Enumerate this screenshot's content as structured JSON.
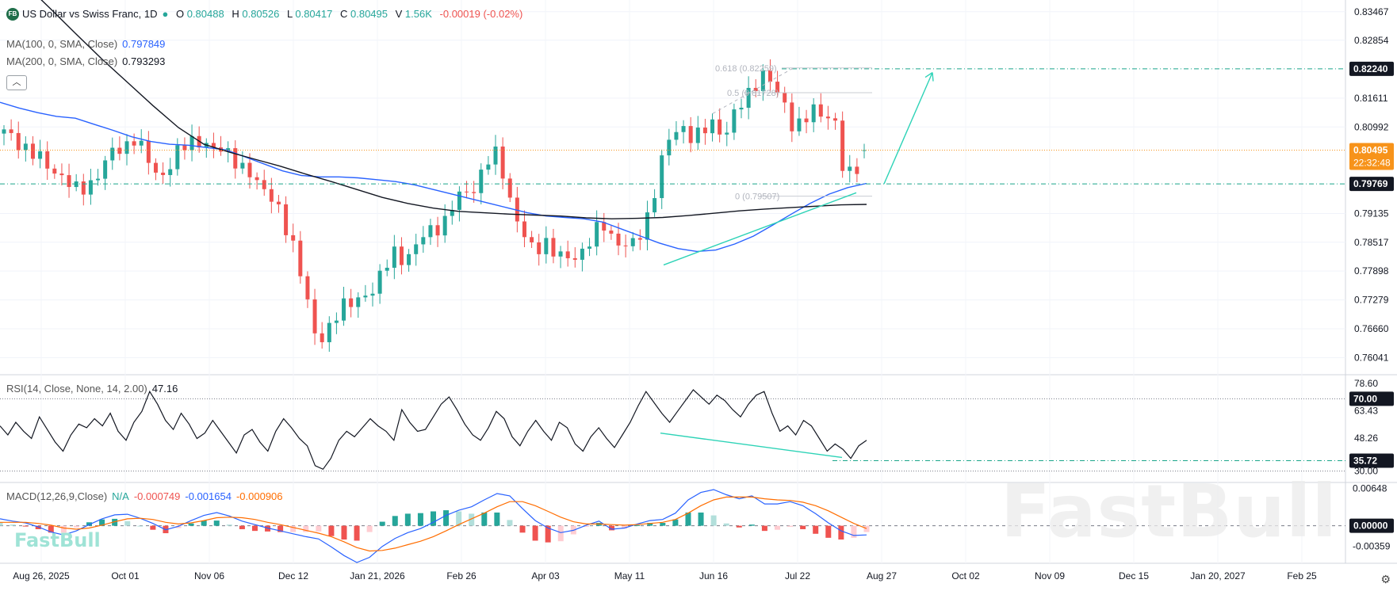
{
  "header": {
    "badge": "FB",
    "symbol_title": "US Dollar vs Swiss Franc, 1D",
    "o_label": "O",
    "o_value": "0.80488",
    "h_label": "H",
    "h_value": "0.80526",
    "l_label": "L",
    "l_value": "0.80417",
    "c_label": "C",
    "c_value": "0.80495",
    "v_label": "V",
    "v_value": "1.56K",
    "change": "-0.00019 (-0.02%)"
  },
  "indicators": {
    "ma100_label": "MA(100, 0, SMA, Close)",
    "ma100_value": "0.797849",
    "ma200_label": "MA(200, 0, SMA, Close)",
    "ma200_value": "0.793293",
    "rsi_label": "RSI(14, Close, None, 14, 2.00)",
    "rsi_value": "47.16",
    "macd_label": "MACD(12,26,9,Close)",
    "macd_hist": "N/A",
    "macd_v1": "-0.000749",
    "macd_v2": "-0.001654",
    "macd_v3": "-0.000906"
  },
  "collapse_icon": "chevron-up-icon",
  "settings_icon": "gear-icon",
  "watermark_small": "FastBull",
  "watermark_large": "FastBull",
  "colors": {
    "up": "#26a69a",
    "down": "#ef5350",
    "ma100": "#2962ff",
    "ma200": "#131722",
    "annotation": "#2ed3b7",
    "price_tag": "#f7931a",
    "macd": "#2962ff",
    "signal": "#ff6d00"
  },
  "chart_data": {
    "type": "candlestick",
    "price_axis_ticks": [
      "0.83467",
      "0.82854",
      "0.82240",
      "0.81611",
      "0.80992",
      "0.80495",
      "0.79769",
      "0.79135",
      "0.78517",
      "0.77898",
      "0.77279",
      "0.76660",
      "0.76041"
    ],
    "price_axis_range": [
      0.7569,
      0.8365
    ],
    "x_tick_labels": [
      "Aug 26, 2025",
      "Oct 01",
      "Nov 06",
      "Dec 12",
      "Jan 21, 2026",
      "Feb 26",
      "Apr 03",
      "May 11",
      "Jun 16",
      "Jul 22",
      "Aug 27",
      "Oct 02",
      "Nov 09",
      "Dec 15",
      "Jan 20, 2027",
      "Feb 25"
    ],
    "current_price": "0.80495",
    "countdown": "22:32:48",
    "support_level": "0.79769",
    "fib_target_level": "0.82240",
    "fib_levels": [
      {
        "label": "0.618 (0.82259)",
        "value": 0.82259
      },
      {
        "label": "0.5 (0.81728)",
        "value": 0.81728
      },
      {
        "label": "0 (0.79507)",
        "value": 0.79507
      }
    ],
    "close_path": [
      0.8085,
      0.8075,
      0.806,
      0.8038,
      0.802,
      0.8008,
      0.7992,
      0.7958,
      0.797,
      0.7988,
      0.8015,
      0.8048,
      0.806,
      0.8075,
      0.804,
      0.8005,
      0.8,
      0.8028,
      0.8058,
      0.8078,
      0.8065,
      0.8042,
      0.8058,
      0.8035,
      0.8,
      0.7985,
      0.7972,
      0.7945,
      0.788,
      0.784,
      0.7772,
      0.7648,
      0.7635,
      0.7702,
      0.772,
      0.7712,
      0.7738,
      0.776,
      0.7792,
      0.7825,
      0.7818,
      0.784,
      0.7862,
      0.7882,
      0.7898,
      0.7935,
      0.7955,
      0.7972,
      0.8015,
      0.8042,
      0.7995,
      0.7918,
      0.7862,
      0.7825,
      0.7862,
      0.7832,
      0.7808,
      0.7822,
      0.784,
      0.7868,
      0.7885,
      0.7862,
      0.7845,
      0.7842,
      0.7885,
      0.7962,
      0.8045,
      0.8088,
      0.8102,
      0.8072,
      0.8088,
      0.8112,
      0.8082,
      0.8122,
      0.8155,
      0.8195,
      0.8215,
      0.8178,
      0.8152,
      0.8098,
      0.8108,
      0.8135,
      0.8132,
      0.8118,
      0.7985,
      0.8008,
      0.80495
    ],
    "ma100": [
      0.8152,
      0.814,
      0.813,
      0.8122,
      0.8118,
      0.8105,
      0.8092,
      0.8078,
      0.8068,
      0.8062,
      0.806,
      0.8055,
      0.805,
      0.8035,
      0.802,
      0.8005,
      0.7995,
      0.7992,
      0.7992,
      0.799,
      0.7986,
      0.7982,
      0.7975,
      0.7965,
      0.7955,
      0.7945,
      0.7935,
      0.7925,
      0.7915,
      0.7908,
      0.7905,
      0.7902,
      0.7895,
      0.788,
      0.7865,
      0.785,
      0.7838,
      0.7832,
      0.7835,
      0.7848,
      0.7865,
      0.7888,
      0.7912,
      0.7935,
      0.7955,
      0.7969,
      0.7978
    ],
    "ma200": [
      0.8458,
      0.8405,
      0.8352,
      0.8298,
      0.8245,
      0.8195,
      0.8145,
      0.8098,
      0.8062,
      0.8045,
      0.803,
      0.8015,
      0.7998,
      0.7982,
      0.7965,
      0.7948,
      0.7935,
      0.7925,
      0.7918,
      0.7915,
      0.7912,
      0.791,
      0.7908,
      0.7904,
      0.7902,
      0.7903,
      0.7905,
      0.7909,
      0.7914,
      0.7919,
      0.7923,
      0.7926,
      0.7929,
      0.7932,
      0.7933
    ],
    "rsi": {
      "axis_ticks": [
        "78.60",
        "70.00",
        "63.43",
        "48.26",
        "35.72",
        "30.00"
      ],
      "range": [
        25,
        82
      ],
      "overbought": 70,
      "oversold": 30,
      "support": 35.72,
      "values": [
        55,
        50,
        57,
        52,
        48,
        60,
        53,
        46,
        41,
        50,
        56,
        54,
        59,
        55,
        62,
        52,
        47,
        57,
        63,
        74,
        67,
        58,
        53,
        62,
        56,
        48,
        51,
        58,
        52,
        46,
        40,
        50,
        53,
        46,
        41,
        52,
        59,
        54,
        48,
        44,
        33,
        31,
        37,
        47,
        52,
        49,
        54,
        59,
        55,
        52,
        47,
        64,
        57,
        52,
        53,
        60,
        67,
        71,
        64,
        56,
        50,
        47,
        54,
        63,
        59,
        49,
        44,
        52,
        58,
        52,
        47,
        57,
        54,
        45,
        41,
        49,
        54,
        48,
        43,
        50,
        57,
        66,
        74,
        68,
        62,
        57,
        63,
        69,
        75,
        71,
        67,
        72,
        69,
        64,
        60,
        67,
        72,
        74,
        62,
        52,
        55,
        50,
        58,
        55,
        48,
        41,
        45,
        42,
        37,
        44,
        47
      ],
      "trend_from": 51,
      "trend_to": 37.5
    },
    "macd": {
      "axis_ticks": [
        "0.00648",
        "0.00000",
        "-0.00359"
      ],
      "range": [
        -0.0064,
        0.0074
      ],
      "macd": [
        0.0012,
        0.0008,
        0.0005,
        -0.0002,
        -0.0011,
        -0.0016,
        -0.0009,
        0.0002,
        0.0012,
        0.0019,
        0.002,
        0.0013,
        0.0004,
        -0.0007,
        -0.0001,
        0.0009,
        0.0018,
        0.0023,
        0.0017,
        0.0008,
        0.0002,
        -0.0004,
        -0.0009,
        -0.0014,
        -0.0019,
        -0.0023,
        -0.0037,
        -0.0052,
        -0.0064,
        -0.0055,
        -0.0036,
        -0.0022,
        -0.0012,
        -0.0005,
        0.0006,
        0.0018,
        0.0027,
        0.0033,
        0.0045,
        0.0056,
        0.0052,
        0.003,
        0.0009,
        -0.0004,
        -0.0012,
        -0.0008,
        0.0001,
        0.0008,
        -0.0006,
        -0.0004,
        0.0003,
        0.0009,
        0.0011,
        0.0022,
        0.0045,
        0.0058,
        0.0063,
        0.0054,
        0.0047,
        0.0052,
        0.0038,
        0.0038,
        0.0042,
        0.0035,
        0.0021,
        0.0005,
        -0.0009,
        -0.0017,
        -0.0016
      ],
      "signal": [
        0.0006,
        0.0006,
        0.0006,
        0.0004,
        0.0001,
        -0.0004,
        -0.0006,
        -0.0004,
        0.0001,
        0.0007,
        0.0012,
        0.0013,
        0.0011,
        0.0006,
        0.0003,
        0.0005,
        0.0009,
        0.0014,
        0.0015,
        0.0014,
        0.0011,
        0.0006,
        0.0002,
        -0.0003,
        -0.0008,
        -0.0013,
        -0.0019,
        -0.0028,
        -0.0038,
        -0.0044,
        -0.0043,
        -0.0039,
        -0.0033,
        -0.0027,
        -0.0019,
        -0.0009,
        0.0002,
        0.0012,
        0.0022,
        0.0033,
        0.0042,
        0.0042,
        0.0035,
        0.0025,
        0.0015,
        0.0007,
        0.0003,
        0.0003,
        0.0002,
        0.0001,
        0.0002,
        0.0004,
        0.0006,
        0.0011,
        0.0022,
        0.0035,
        0.0045,
        0.005,
        0.005,
        0.005,
        0.0047,
        0.0045,
        0.0044,
        0.0041,
        0.0035,
        0.0026,
        0.0015,
        0.0004,
        -0.0005
      ]
    }
  }
}
